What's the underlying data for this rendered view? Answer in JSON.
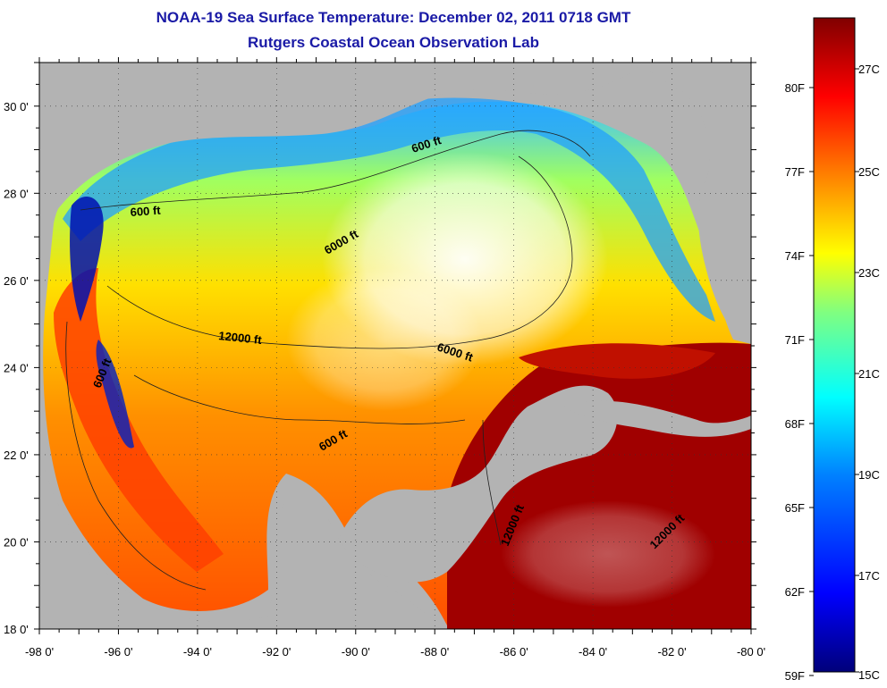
{
  "title": "NOAA-19 Sea Surface Temperature:  December 02, 2011 0718 GMT",
  "subtitle": "Rutgers Coastal Ocean Observation Lab",
  "map": {
    "lon_range": [
      -98,
      -80
    ],
    "lat_range": [
      18,
      31
    ],
    "lon_ticks": [
      "-98 0'",
      "-96 0'",
      "-94 0'",
      "-92 0'",
      "-90 0'",
      "-88 0'",
      "-86 0'",
      "-84 0'",
      "-82 0'",
      "-80 0'"
    ],
    "lat_ticks": [
      "18 0'",
      "20 0'",
      "22 0'",
      "24 0'",
      "26 0'",
      "28 0'",
      "30 0'"
    ],
    "land_color": "#b3b3b3",
    "contour_labels": [
      "600 ft",
      "600 ft",
      "600 ft",
      "600 ft",
      "6000 ft",
      "6000 ft",
      "12000 ft",
      "12000 ft",
      "12000 ft"
    ]
  },
  "colorbar": {
    "celsius_labels": [
      "27C",
      "25C",
      "23C",
      "21C",
      "19C",
      "17C",
      "15C"
    ],
    "fahrenheit_labels": [
      "80F",
      "77F",
      "74F",
      "71F",
      "68F",
      "65F",
      "62F",
      "59F"
    ],
    "colors": [
      "#00007a",
      "#0000ff",
      "#0080ff",
      "#00ffff",
      "#80ff80",
      "#ffff00",
      "#ff8000",
      "#ff0000",
      "#800000"
    ]
  }
}
